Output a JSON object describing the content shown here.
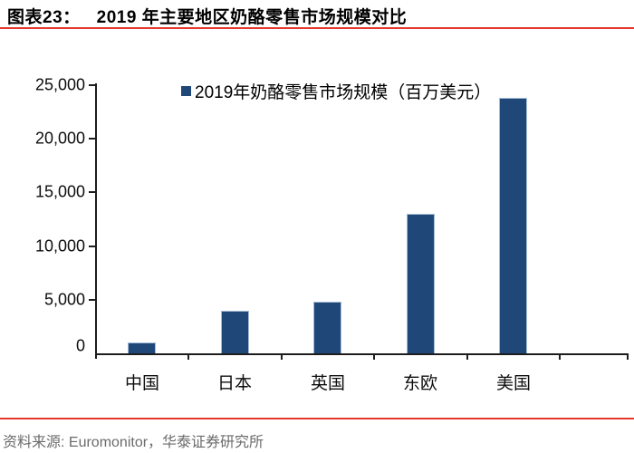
{
  "header": {
    "label": "图表23：",
    "title": "2019 年主要地区奶酪零售市场规模对比"
  },
  "chart_data": {
    "type": "bar",
    "title": "2019 年主要地区奶酪零售市场规模对比",
    "legend": [
      "2019年奶酪零售市场规模（百万美元）"
    ],
    "legend_position": "top-center",
    "categories": [
      "中国",
      "日本",
      "英国",
      "东欧",
      "美国"
    ],
    "values": [
      1000,
      4000,
      4800,
      13000,
      23800
    ],
    "xlabel": "",
    "ylabel": "",
    "ylim": [
      0,
      25000
    ],
    "ytick_step": 5000,
    "ytick_labels": [
      "0",
      "5,000",
      "10,000",
      "15,000",
      "20,000",
      "25,000"
    ],
    "grid": false,
    "bar_color": "#1f4879",
    "bar_border_color": "#a7bcd6",
    "unit": "百万美元"
  },
  "footer": {
    "source": "资料来源: Euromonitor，华泰证券研究所"
  },
  "colors": {
    "accent_red": "#e5392b",
    "axis_black": "#1d1d1d",
    "bar_blue": "#1f4879",
    "footer_gray": "#6b6b6b"
  }
}
